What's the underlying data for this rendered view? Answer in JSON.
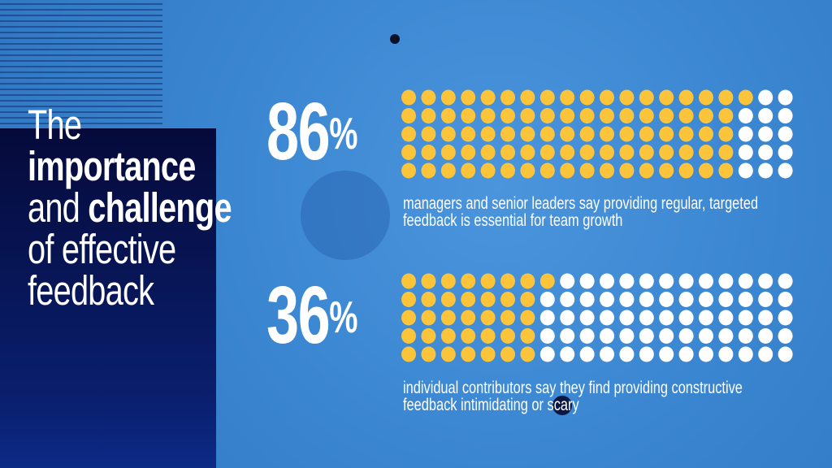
{
  "title": {
    "line1": "The",
    "line2": "importance",
    "line3a": "and ",
    "line3b": "challenge",
    "line4": "of effective",
    "line5": "feedback"
  },
  "colors": {
    "filled": "#fbc43a",
    "empty": "#ffffff",
    "background": "#3a86d0",
    "panel": "#08175a"
  },
  "chart_data": [
    {
      "type": "waffle",
      "total": 100,
      "rows": 5,
      "columns": 20,
      "value": 86,
      "label": "86",
      "unit": "%",
      "caption": "managers and senior leaders say providing regular, targeted feedback is essential for team growth"
    },
    {
      "type": "waffle",
      "total": 100,
      "rows": 5,
      "columns": 20,
      "value": 36,
      "label": "36",
      "unit": "%",
      "caption": "individual contributors say they find providing constructive feedback intimidating or scary"
    }
  ]
}
